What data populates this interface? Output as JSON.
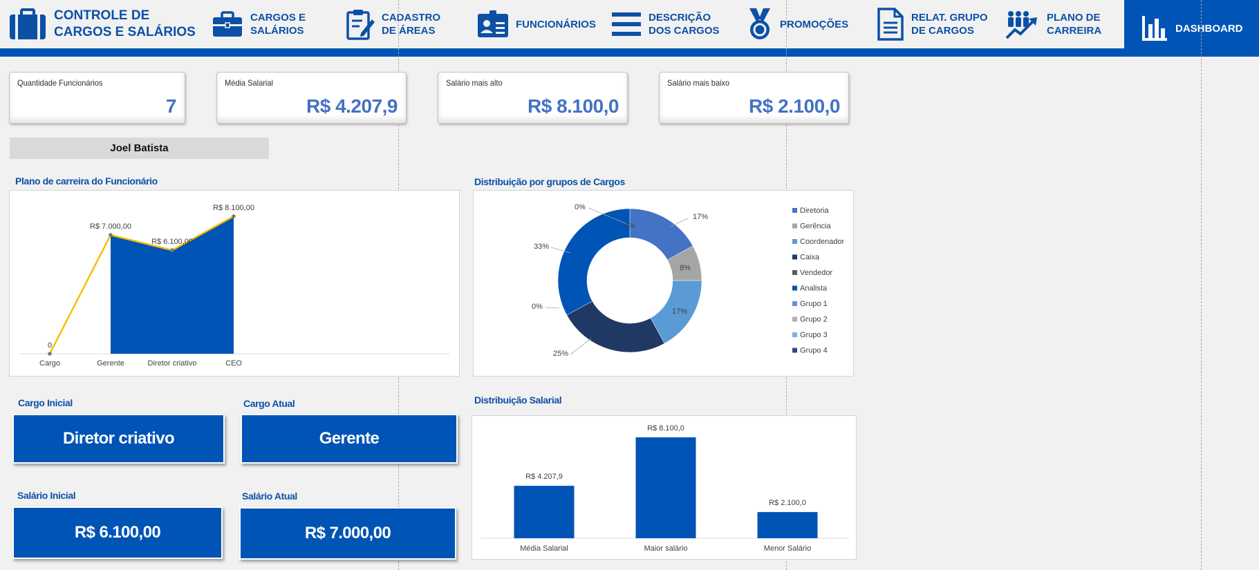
{
  "colors": {
    "primary": "#0054b6",
    "accent_line": "#f5c000",
    "kpi_value": "#4472c4",
    "title": "#0c50a6"
  },
  "nav": [
    {
      "label": "CONTROLE DE\nCARGOS E SALÁRIOS",
      "icon": "briefcase-icon"
    },
    {
      "label": "CARGOS E\nSALÁRIOS",
      "icon": "briefcase-icon"
    },
    {
      "label": "CADASTRO\nDE ÁREAS",
      "icon": "clipboard-edit-icon"
    },
    {
      "label": "FUNCIONÁRIOS",
      "icon": "id-card-icon"
    },
    {
      "label": "DESCRIÇÃO\nDOS CARGOS",
      "icon": "list-icon"
    },
    {
      "label": "PROMOÇÕES",
      "icon": "medal-icon"
    },
    {
      "label": "RELAT. GRUPO\nDE CARGOS",
      "icon": "document-icon"
    },
    {
      "label": "PLANO DE\nCARREIRA",
      "icon": "people-growth-icon"
    },
    {
      "label": "DASHBOARD",
      "icon": "bar-chart-icon"
    }
  ],
  "kpis": [
    {
      "title": "Quantidade Funcionários",
      "value": "7"
    },
    {
      "title": "Média Salarial",
      "value": "R$ 4.207,9"
    },
    {
      "title": "Salário mais alto",
      "value": "R$ 8.100,0"
    },
    {
      "title": "Salário mais baixo",
      "value": "R$ 2.100,0"
    }
  ],
  "employee": {
    "name": "Joel Batista"
  },
  "sections": {
    "career_plan": "Plano de carreira do Funcionário",
    "group_distribution": "Distribuição por grupos de Cargos",
    "salary_distribution": "Distribuição Salarial",
    "initial_role": "Cargo Inicial",
    "current_role": "Cargo Atual",
    "initial_salary": "Salário Inicial",
    "current_salary": "Salário Atual"
  },
  "values": {
    "initial_role": "Diretor criativo",
    "current_role": "Gerente",
    "initial_salary": "R$ 6.100,00",
    "current_salary": "R$ 7.000,00"
  },
  "chart_data": [
    {
      "type": "area",
      "title": "Plano de carreira do Funcionário",
      "categories": [
        "Cargo",
        "Gerente",
        "Diretor criativo",
        "CEO"
      ],
      "values": [
        0,
        7000,
        6100,
        8100
      ],
      "data_labels": [
        "0",
        "R$ 7.000,00",
        "R$ 6.100,00",
        "R$ 8.100,00"
      ],
      "ylim": [
        0,
        8100
      ],
      "grid": false
    },
    {
      "type": "pie",
      "title": "Distribuição por grupos de Cargos",
      "categories": [
        "Diretoria",
        "Gerência",
        "Coordenador",
        "Caixa",
        "Vendedor",
        "Analista",
        "Grupo 1",
        "Grupo 2",
        "Grupo 3",
        "Grupo 4"
      ],
      "values": [
        17,
        8,
        17,
        25,
        0,
        33,
        0,
        0,
        0,
        0
      ],
      "data_labels": [
        "17%",
        "8%",
        "17%",
        "25%",
        "0%",
        "33%",
        "0%",
        "0%",
        "0%",
        "0%"
      ],
      "colors": [
        "#4472c4",
        "#a5a5a5",
        "#5b9bd5",
        "#1f3864",
        "#5a5a5a",
        "#0054b6",
        "#6f8fd6",
        "#b0b0b0",
        "#7ab0e3",
        "#2c4a8c"
      ],
      "legend": "right"
    },
    {
      "type": "bar",
      "title": "Distribuição Salarial",
      "categories": [
        "Média Salarial",
        "Maior salário",
        "Menor Salário"
      ],
      "values": [
        4207.9,
        8100.0,
        2100.0
      ],
      "data_labels": [
        "R$ 4.207,9",
        "R$ 8.100,0",
        "R$ 2.100,0"
      ],
      "ylim": [
        0,
        8100
      ],
      "grid": false
    }
  ]
}
